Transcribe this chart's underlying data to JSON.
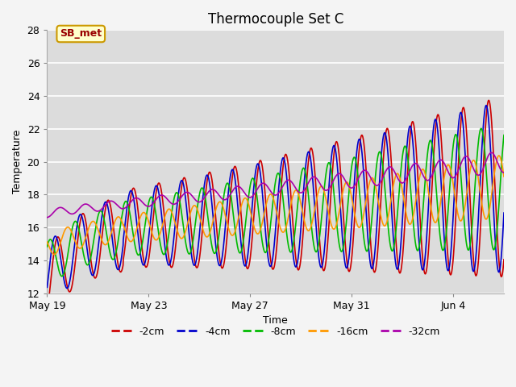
{
  "title": "Thermocouple Set C",
  "xlabel": "Time",
  "ylabel": "Temperature",
  "ylim": [
    12,
    28
  ],
  "yticks": [
    12,
    14,
    16,
    18,
    20,
    22,
    24,
    26,
    28
  ],
  "x_tick_labels": [
    "May 19",
    "May 23",
    "May 27",
    "May 31",
    "Jun 4"
  ],
  "x_tick_positions": [
    0,
    4,
    8,
    12,
    16
  ],
  "annotation_text": "SB_met",
  "colors": {
    "-2cm": "#cc0000",
    "-4cm": "#0000cc",
    "-8cm": "#00bb00",
    "-16cm": "#ff9900",
    "-32cm": "#aa00aa"
  },
  "linewidth": 1.2,
  "total_days": 18,
  "n_points": 2160
}
